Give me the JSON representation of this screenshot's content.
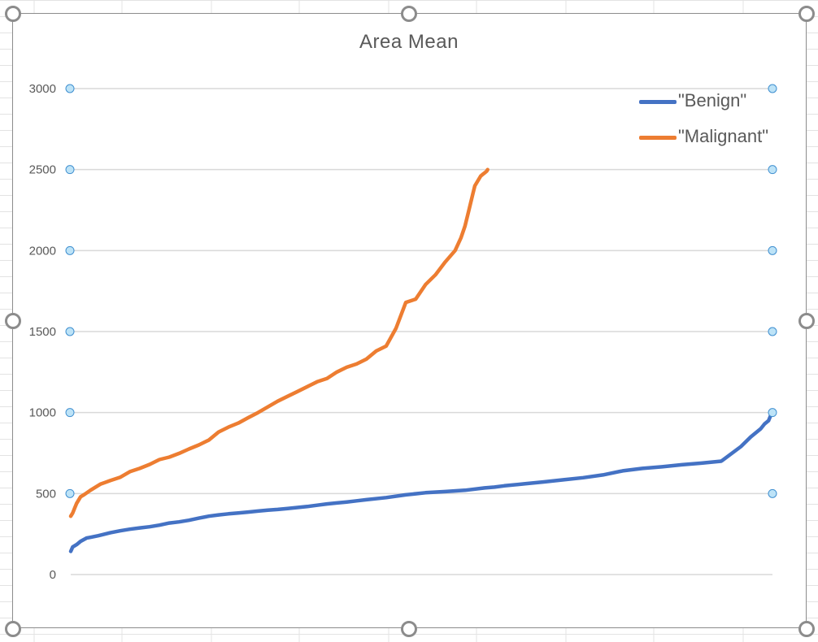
{
  "chart_data": {
    "type": "line",
    "title": "Area Mean",
    "xlabel": "",
    "ylabel": "",
    "ylim": [
      0,
      3000
    ],
    "yticks": [
      0,
      500,
      1000,
      1500,
      2000,
      2500,
      3000
    ],
    "ytick_labels": [
      "0",
      "500",
      "1000",
      "1500",
      "2000",
      "2500",
      "3000"
    ],
    "grid": true,
    "legend_position": "top-right",
    "series": [
      {
        "name": "\"Benign\"",
        "color": "#4472c4",
        "x": [
          0,
          1,
          3,
          5,
          8,
          10,
          14,
          20,
          25,
          30,
          35,
          40,
          45,
          50,
          55,
          60,
          65,
          70,
          75,
          80,
          85,
          90,
          95,
          100,
          105,
          110,
          115,
          120,
          125,
          130,
          135,
          140,
          145,
          150,
          160,
          170,
          180,
          190,
          200,
          210,
          215,
          220,
          230,
          240,
          250,
          260,
          270,
          280,
          290,
          300,
          310,
          320,
          330,
          340,
          345,
          350,
          352,
          354,
          355,
          356
        ],
        "y": [
          143,
          170,
          185,
          205,
          225,
          230,
          240,
          258,
          270,
          280,
          288,
          295,
          305,
          318,
          325,
          335,
          348,
          360,
          368,
          375,
          380,
          386,
          392,
          398,
          402,
          408,
          414,
          420,
          428,
          436,
          442,
          448,
          455,
          462,
          475,
          492,
          505,
          512,
          520,
          535,
          540,
          548,
          560,
          572,
          585,
          598,
          615,
          640,
          655,
          665,
          678,
          688,
          700,
          790,
          850,
          900,
          930,
          950,
          980,
          1000
        ]
      },
      {
        "name": "\"Malignant\"",
        "color": "#ed7d31",
        "x": [
          0,
          1,
          2,
          3,
          4,
          5,
          7,
          10,
          15,
          20,
          25,
          30,
          35,
          40,
          45,
          50,
          55,
          60,
          65,
          70,
          75,
          80,
          85,
          90,
          95,
          100,
          105,
          110,
          115,
          120,
          125,
          130,
          135,
          140,
          145,
          150,
          155,
          160,
          165,
          170,
          175,
          180,
          185,
          190,
          195,
          198,
          200,
          202,
          204,
          205,
          206,
          207,
          208,
          209,
          210,
          211,
          211.5
        ],
        "y": [
          360,
          380,
          410,
          440,
          460,
          480,
          495,
          520,
          558,
          580,
          600,
          635,
          655,
          680,
          710,
          725,
          748,
          775,
          800,
          830,
          880,
          910,
          935,
          968,
          1000,
          1035,
          1070,
          1100,
          1130,
          1160,
          1190,
          1210,
          1250,
          1280,
          1300,
          1330,
          1380,
          1410,
          1520,
          1680,
          1700,
          1790,
          1850,
          1930,
          2000,
          2080,
          2150,
          2250,
          2350,
          2400,
          2420,
          2440,
          2460,
          2470,
          2480,
          2490,
          2500
        ]
      }
    ]
  }
}
